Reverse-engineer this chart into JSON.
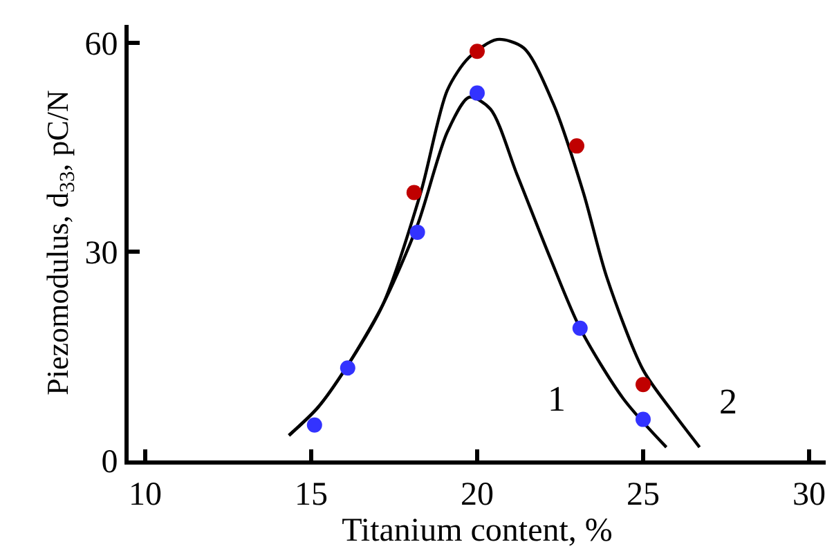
{
  "chart_data": {
    "type": "scatter",
    "xlabel": "Titanium content, %",
    "ylabel": "Piezomodulus, d$_{33}$, pC/N",
    "xlim": [
      9.5,
      30.5
    ],
    "xticks": [
      10,
      15,
      20,
      25,
      30
    ],
    "ylim": [
      0,
      62.6
    ],
    "yticks": [
      0,
      30,
      60
    ],
    "legend": false,
    "marker": "circle",
    "series": [
      {
        "type": "line",
        "name": "1",
        "color": "#000000",
        "marker": "none",
        "line_style": "solid",
        "x": [
          14.33,
          15.2,
          16.05,
          17.15,
          18.2,
          19.1,
          19.76,
          20.4,
          21.2,
          22.2,
          23.1,
          24.4,
          25.7
        ],
        "values": [
          3.6,
          7.6,
          13.3,
          22.3,
          33.8,
          47.2,
          52.2,
          50.5,
          41.1,
          29.1,
          19,
          8.9,
          1.9
        ]
      },
      {
        "type": "line",
        "name": "2",
        "color": "#000000",
        "marker": "none",
        "line_style": "solid",
        "x": [
          14.33,
          15.2,
          16.05,
          17.15,
          18.3,
          19.1,
          19.75,
          20.6,
          21.4,
          22.3,
          23.2,
          23.9,
          25.0,
          25.9,
          26.7
        ],
        "values": [
          3.6,
          7.6,
          13.3,
          22.3,
          38.5,
          53.2,
          57.9,
          60.5,
          59.3,
          51.2,
          38.5,
          26.4,
          13,
          6.9,
          1.9
        ]
      },
      {
        "color": "#3333ff",
        "x": [
          15.1,
          16.1,
          18.2,
          20,
          23.1,
          25.0
        ],
        "values": [
          5.1,
          13.3,
          32.8,
          52.8,
          19,
          5.9
        ]
      },
      {
        "color": "#c00000",
        "x": [
          18.1,
          20,
          23.0,
          25.0
        ],
        "values": [
          38.5,
          58.8,
          45.2,
          10.9
        ]
      }
    ]
  }
}
